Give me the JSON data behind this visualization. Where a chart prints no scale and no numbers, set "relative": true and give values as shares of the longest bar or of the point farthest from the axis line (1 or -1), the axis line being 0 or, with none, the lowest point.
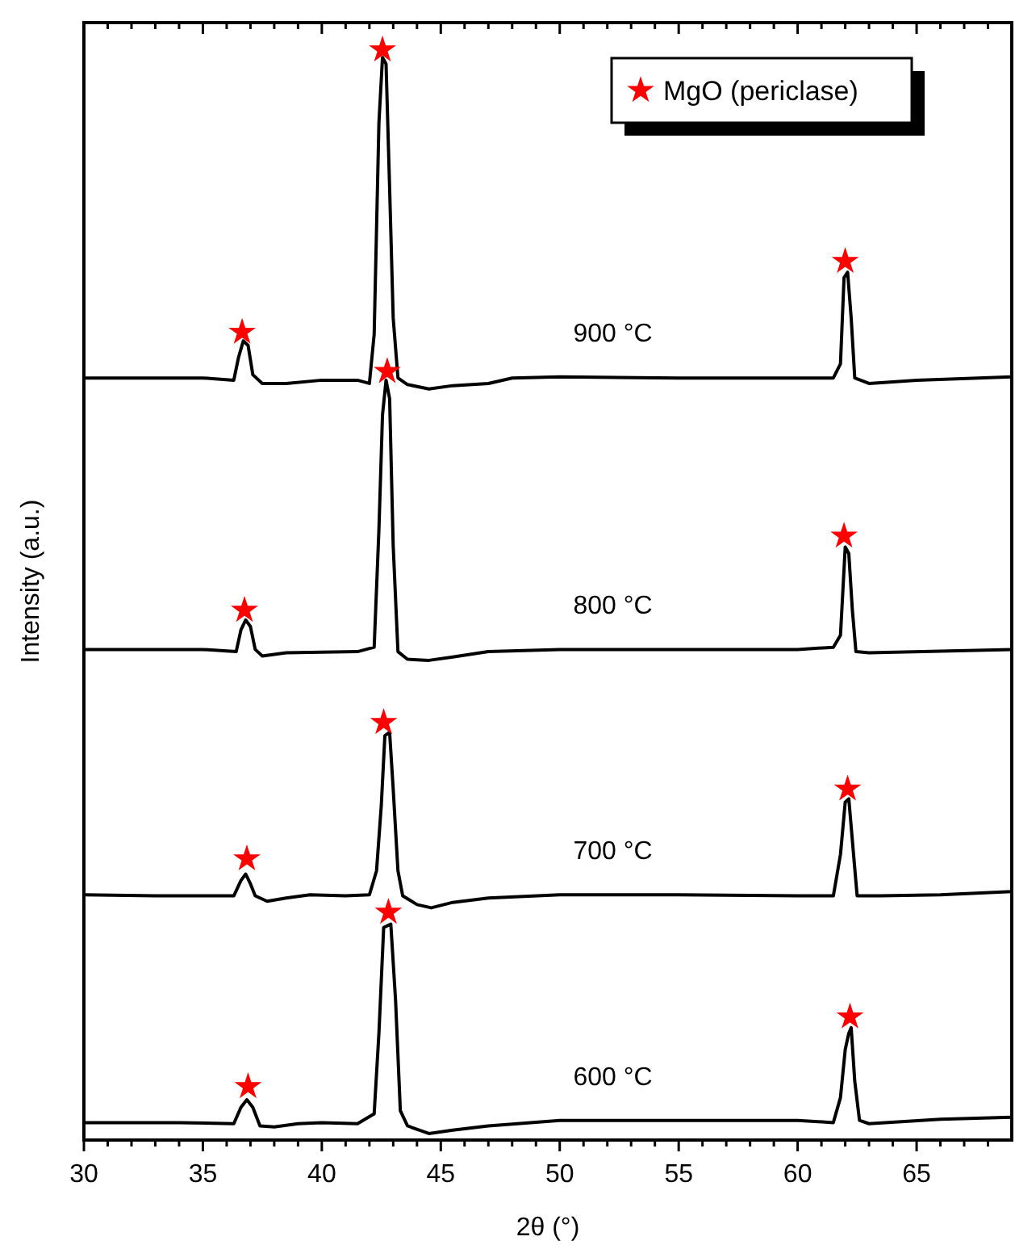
{
  "chart_data": {
    "type": "line",
    "relative": true,
    "xlabel": "2θ (°)",
    "ylabel": "Intensity (a.u.)",
    "xlim": [
      30,
      69
    ],
    "xticks": [
      30,
      {
        "value": 31,
        "label": null
      },
      {
        "value": 32,
        "label": null
      },
      {
        "value": 33,
        "label": null
      },
      {
        "value": 34,
        "label": null
      },
      35,
      {
        "value": 36,
        "label": null
      },
      {
        "value": 37,
        "label": null
      },
      {
        "value": 38,
        "label": null
      },
      {
        "value": 39,
        "label": null
      },
      40,
      {
        "value": 41,
        "label": null
      },
      {
        "value": 42,
        "label": null
      },
      {
        "value": 43,
        "label": null
      },
      {
        "value": 44,
        "label": null
      },
      45,
      {
        "value": 46,
        "label": null
      },
      {
        "value": 47,
        "label": null
      },
      {
        "value": 48,
        "label": null
      },
      {
        "value": 49,
        "label": null
      },
      50,
      {
        "value": 51,
        "label": null
      },
      {
        "value": 52,
        "label": null
      },
      {
        "value": 53,
        "label": null
      },
      {
        "value": 54,
        "label": null
      },
      55,
      {
        "value": 56,
        "label": null
      },
      {
        "value": 57,
        "label": null
      },
      {
        "value": 58,
        "label": null
      },
      {
        "value": 59,
        "label": null
      },
      60,
      {
        "value": 61,
        "label": null
      },
      {
        "value": 62,
        "label": null
      },
      {
        "value": 63,
        "label": null
      },
      {
        "value": 64,
        "label": null
      },
      65,
      {
        "value": 66,
        "label": null
      },
      {
        "value": 67,
        "label": null
      },
      {
        "value": 68,
        "label": null
      }
    ],
    "legend": "top right",
    "grid": false,
    "series": [
      {
        "name": "900 °C",
        "color": "#000000",
        "x": [
          30,
          35,
          36.3,
          36.5,
          36.7,
          36.9,
          37.1,
          37.5,
          38.5,
          40,
          41.5,
          42.0,
          42.2,
          42.4,
          42.55,
          42.7,
          42.85,
          43.0,
          43.2,
          43.6,
          44.5,
          45.5,
          47,
          48,
          50,
          55,
          60,
          61.5,
          61.8,
          61.95,
          62.1,
          62.25,
          62.4,
          63,
          65,
          69
        ],
        "values": [
          0.699,
          0.699,
          0.697,
          0.718,
          0.733,
          0.729,
          0.702,
          0.694,
          0.694,
          0.697,
          0.697,
          0.694,
          0.739,
          0.933,
          0.993,
          0.987,
          0.873,
          0.754,
          0.699,
          0.693,
          0.689,
          0.692,
          0.694,
          0.699,
          0.7,
          0.699,
          0.699,
          0.699,
          0.712,
          0.791,
          0.796,
          0.754,
          0.699,
          0.694,
          0.697,
          0.7
        ]
      },
      {
        "name": "800 °C",
        "color": "#000000",
        "x": [
          30,
          35,
          36.4,
          36.6,
          36.8,
          37.0,
          37.2,
          37.5,
          38.5,
          41.5,
          42.2,
          42.4,
          42.55,
          42.7,
          42.85,
          43.0,
          43.2,
          43.6,
          44.5,
          45.5,
          47,
          50,
          60,
          61.5,
          61.8,
          62.0,
          62.15,
          62.3,
          62.45,
          63,
          69
        ],
        "values": [
          0.45,
          0.45,
          0.448,
          0.468,
          0.477,
          0.471,
          0.45,
          0.444,
          0.447,
          0.448,
          0.452,
          0.56,
          0.665,
          0.697,
          0.68,
          0.545,
          0.448,
          0.441,
          0.44,
          0.443,
          0.448,
          0.45,
          0.45,
          0.452,
          0.463,
          0.544,
          0.538,
          0.486,
          0.448,
          0.447,
          0.45
        ]
      },
      {
        "name": "700 °C",
        "color": "#000000",
        "x": [
          30,
          33,
          36.3,
          36.6,
          36.8,
          37.0,
          37.2,
          37.7,
          38.5,
          39.5,
          41,
          42.0,
          42.3,
          42.5,
          42.65,
          42.85,
          43.0,
          43.2,
          43.4,
          44,
          44.6,
          45.5,
          47,
          50,
          55,
          60,
          61.5,
          61.8,
          62.0,
          62.15,
          62.35,
          62.5,
          63.5,
          66,
          69
        ],
        "values": [
          0.225,
          0.224,
          0.224,
          0.238,
          0.244,
          0.235,
          0.224,
          0.219,
          0.222,
          0.225,
          0.224,
          0.225,
          0.247,
          0.307,
          0.371,
          0.374,
          0.322,
          0.247,
          0.224,
          0.216,
          0.213,
          0.218,
          0.222,
          0.225,
          0.225,
          0.224,
          0.224,
          0.262,
          0.31,
          0.313,
          0.262,
          0.224,
          0.224,
          0.225,
          0.228
        ]
      },
      {
        "name": "600 °C",
        "color": "#000000",
        "x": [
          30,
          34,
          36.3,
          36.6,
          36.85,
          37.1,
          37.4,
          38,
          39,
          40,
          41.5,
          42.2,
          42.4,
          42.6,
          42.9,
          43.1,
          43.3,
          43.6,
          44.5,
          45.5,
          47,
          50,
          55,
          60,
          61.5,
          61.8,
          62.0,
          62.15,
          62.25,
          62.4,
          62.6,
          63,
          66,
          69
        ],
        "values": [
          0.016,
          0.016,
          0.015,
          0.03,
          0.037,
          0.03,
          0.013,
          0.012,
          0.015,
          0.016,
          0.015,
          0.024,
          0.098,
          0.195,
          0.198,
          0.128,
          0.027,
          0.013,
          0.006,
          0.009,
          0.013,
          0.018,
          0.018,
          0.018,
          0.016,
          0.039,
          0.083,
          0.098,
          0.103,
          0.054,
          0.018,
          0.015,
          0.019,
          0.021
        ]
      },
      {
        "name": "MgO (periclase)",
        "type": "scatter",
        "marker": "star",
        "color": "#ff0000",
        "x": [
          36.65,
          42.55,
          62.0,
          36.75,
          42.75,
          61.95,
          36.85,
          42.6,
          62.1,
          36.9,
          42.8,
          62.2
        ],
        "values": [
          0.741,
          1,
          0.806,
          0.486,
          0.705,
          0.554,
          0.258,
          0.383,
          0.322,
          0.049,
          0.209,
          0.113
        ]
      }
    ]
  }
}
